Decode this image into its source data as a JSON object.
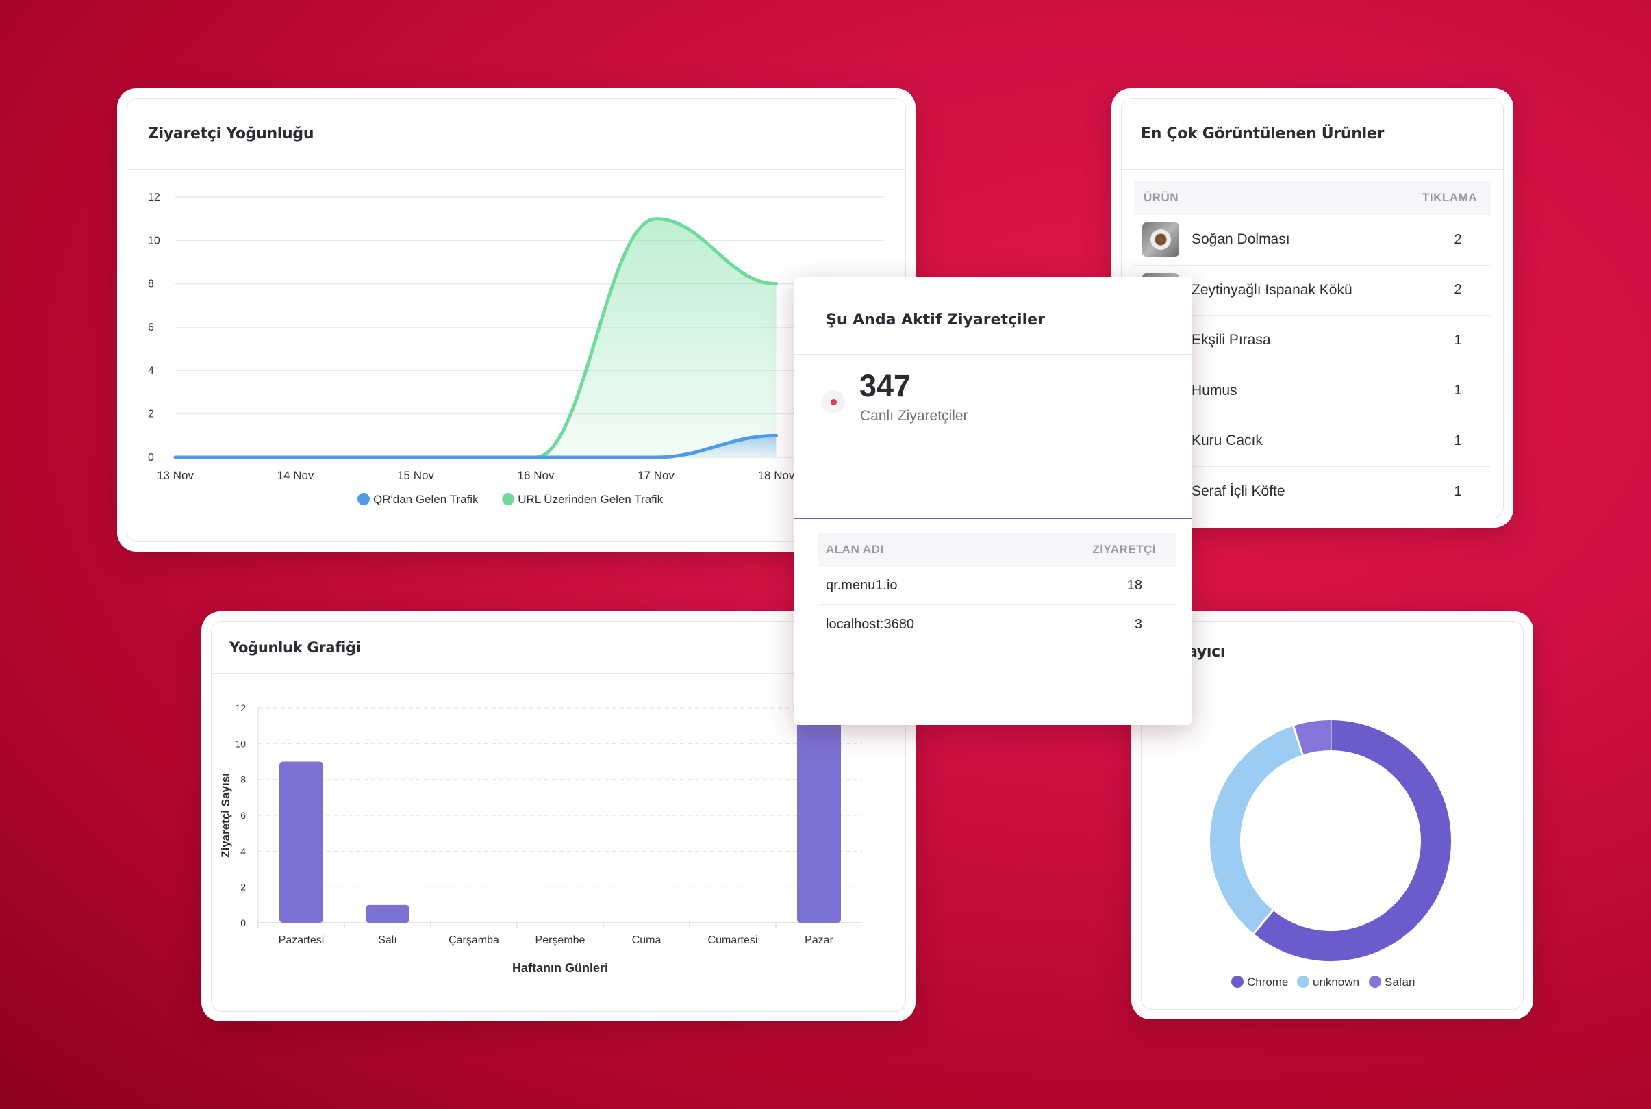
{
  "density_card": {
    "title": "Ziyaretçi Yoğunluğu",
    "chart_data": {
      "type": "area",
      "x": [
        "13 Nov",
        "14 Nov",
        "15 Nov",
        "16 Nov",
        "17 Nov",
        "18 Nov"
      ],
      "series": [
        {
          "name": "QR'dan Gelen Trafik",
          "values": [
            0,
            0,
            0,
            0,
            0,
            1
          ],
          "color": "#4f9be8"
        },
        {
          "name": "URL Üzerinden Gelen Trafik",
          "values": [
            0,
            0,
            0,
            0,
            11,
            8
          ],
          "color": "#6fdb9b"
        }
      ],
      "ylim": [
        0,
        12
      ],
      "yticks": [
        "0",
        "2",
        "4",
        "6",
        "8",
        "10",
        "12"
      ],
      "grid": true,
      "legend": "bottom"
    }
  },
  "products_card": {
    "title": "En Çok Görüntülenen Ürünler",
    "col_product": "ÜRÜN",
    "col_clicks": "TIKLAMA",
    "rows": [
      {
        "name": "Soğan Dolması",
        "count": "2"
      },
      {
        "name": "Zeytinyağlı Ispanak Kökü",
        "count": "2"
      },
      {
        "name": "Ekşili Pırasa",
        "count": "1"
      },
      {
        "name": "Humus",
        "count": "1"
      },
      {
        "name": "Kuru Cacık",
        "count": "1"
      },
      {
        "name": "Seraf İçli Köfte",
        "count": "1"
      }
    ]
  },
  "active_card": {
    "title": "Şu Anda Aktif Ziyaretçiler",
    "live_count": "347",
    "live_label": "Canlı Ziyaretçiler",
    "col_domain": "ALAN ADI",
    "col_visitors": "ZİYARETÇİ",
    "rows": [
      {
        "domain": "qr.menu1.io",
        "visitors": "18"
      },
      {
        "domain": "localhost:3680",
        "visitors": "3"
      }
    ]
  },
  "weekly_card": {
    "title": "Yoğunluk Grafiği",
    "chart_data": {
      "type": "bar",
      "categories": [
        "Pazartesi",
        "Salı",
        "Çarşamba",
        "Perşembe",
        "Cuma",
        "Cumartesi",
        "Pazar"
      ],
      "values": [
        9,
        1,
        0,
        0,
        0,
        0,
        12
      ],
      "xlabel": "Haftanın Günleri",
      "ylabel": "Ziyaretçi Sayısı",
      "ylim": [
        0,
        12
      ],
      "yticks": [
        "0",
        "2",
        "4",
        "6",
        "8",
        "10",
        "12"
      ],
      "color": "#7c72d3",
      "grid": true
    }
  },
  "browser_card": {
    "title": "Tarayıcı",
    "chart_data": {
      "type": "pie",
      "labels": [
        "Chrome",
        "unknown",
        "Safari"
      ],
      "values": [
        61,
        34,
        5
      ],
      "colors": [
        "#6a5ccb",
        "#9dccf3",
        "#8675d8"
      ],
      "legend": "bottom"
    }
  }
}
